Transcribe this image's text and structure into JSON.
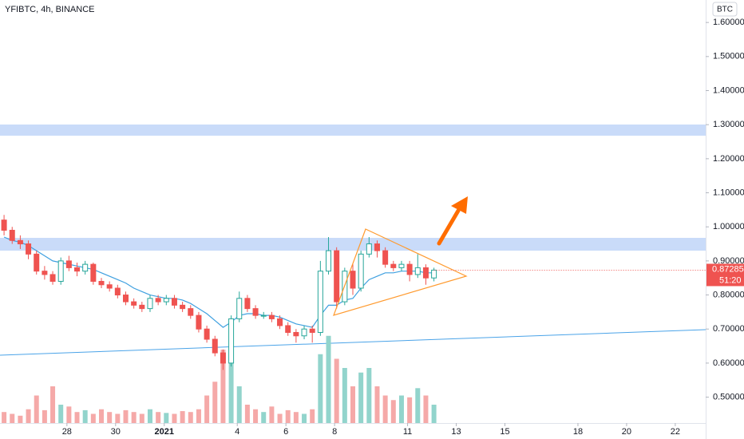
{
  "chart_data": {
    "type": "candlestick",
    "title": "YFIBTC, 4h, BINANCE",
    "currency": "BTC",
    "last_price": 0.87285,
    "countdown": "51:20",
    "up_color": "#26a69a",
    "down_color": "#ef5350",
    "up_volume_color": "#92d4cc",
    "down_volume_color": "#f5a9a8",
    "ema_color": "#3fa0e0",
    "xlim": [
      0,
      174
    ],
    "ylim": [
      0.424,
      1.666
    ],
    "vlim": [
      0,
      100
    ],
    "xticks": [
      {
        "value": 16.5,
        "label": "28"
      },
      {
        "value": 28.5,
        "label": "30"
      },
      {
        "value": 40.5,
        "label": "2021"
      },
      {
        "value": 58.5,
        "label": "4"
      },
      {
        "value": 70.5,
        "label": "6"
      },
      {
        "value": 82.5,
        "label": "8"
      },
      {
        "value": 100.5,
        "label": "11"
      },
      {
        "value": 112.5,
        "label": "13"
      },
      {
        "value": 124.5,
        "label": "15"
      },
      {
        "value": 142.5,
        "label": "18"
      },
      {
        "value": 154.5,
        "label": "20"
      },
      {
        "value": 166.5,
        "label": "22"
      }
    ],
    "yticks": [
      {
        "value": 0.5,
        "label": "0.50000"
      },
      {
        "value": 0.6,
        "label": "0.60000"
      },
      {
        "value": 0.7,
        "label": "0.70000"
      },
      {
        "value": 0.8,
        "label": "0.80000"
      },
      {
        "value": 0.9,
        "label": "0.90000"
      },
      {
        "value": 1.0,
        "label": "1.00000"
      },
      {
        "value": 1.1,
        "label": "1.10000"
      },
      {
        "value": 1.2,
        "label": "1.20000"
      },
      {
        "value": 1.3,
        "label": "1.30000"
      },
      {
        "value": 1.4,
        "label": "1.40000"
      },
      {
        "value": 1.5,
        "label": "1.50000"
      },
      {
        "value": 1.6,
        "label": "1.60000"
      }
    ],
    "x": [
      1,
      3,
      5,
      7,
      9,
      11,
      13,
      15,
      17,
      19,
      21,
      23,
      25,
      27,
      29,
      31,
      33,
      35,
      37,
      39,
      41,
      43,
      45,
      47,
      49,
      51,
      53,
      55,
      57,
      59,
      61,
      63,
      65,
      67,
      69,
      71,
      73,
      75,
      77,
      79,
      81,
      83,
      85,
      87,
      89,
      91,
      93,
      95,
      97,
      99,
      101,
      103,
      105,
      107
    ],
    "open": [
      1.02,
      0.99,
      0.96,
      0.95,
      0.92,
      0.87,
      0.86,
      0.84,
      0.9,
      0.88,
      0.87,
      0.89,
      0.84,
      0.83,
      0.82,
      0.8,
      0.78,
      0.77,
      0.76,
      0.79,
      0.78,
      0.79,
      0.77,
      0.76,
      0.74,
      0.7,
      0.67,
      0.63,
      0.6,
      0.73,
      0.79,
      0.76,
      0.74,
      0.74,
      0.73,
      0.71,
      0.69,
      0.68,
      0.7,
      0.69,
      0.87,
      0.93,
      0.78,
      0.87,
      0.82,
      0.92,
      0.95,
      0.93,
      0.89,
      0.88,
      0.89,
      0.86,
      0.88,
      0.85
    ],
    "high": [
      1.035,
      1.0,
      0.975,
      0.96,
      0.93,
      0.885,
      0.87,
      0.91,
      0.915,
      0.895,
      0.9,
      0.895,
      0.85,
      0.84,
      0.83,
      0.81,
      0.79,
      0.78,
      0.8,
      0.8,
      0.8,
      0.8,
      0.78,
      0.77,
      0.75,
      0.71,
      0.68,
      0.64,
      0.74,
      0.81,
      0.8,
      0.77,
      0.75,
      0.75,
      0.74,
      0.72,
      0.7,
      0.71,
      0.71,
      0.9,
      0.97,
      0.94,
      0.88,
      0.89,
      0.93,
      0.97,
      0.96,
      0.94,
      0.9,
      0.9,
      0.9,
      0.92,
      0.89,
      0.88
    ],
    "low": [
      0.975,
      0.95,
      0.935,
      0.905,
      0.86,
      0.845,
      0.83,
      0.83,
      0.87,
      0.855,
      0.86,
      0.83,
      0.82,
      0.81,
      0.79,
      0.77,
      0.76,
      0.75,
      0.75,
      0.77,
      0.77,
      0.76,
      0.75,
      0.73,
      0.69,
      0.66,
      0.62,
      0.58,
      0.59,
      0.72,
      0.75,
      0.73,
      0.73,
      0.72,
      0.7,
      0.68,
      0.66,
      0.67,
      0.66,
      0.68,
      0.86,
      0.76,
      0.77,
      0.8,
      0.81,
      0.91,
      0.91,
      0.88,
      0.87,
      0.87,
      0.84,
      0.85,
      0.83,
      0.84
    ],
    "close": [
      0.99,
      0.96,
      0.95,
      0.92,
      0.87,
      0.86,
      0.84,
      0.9,
      0.88,
      0.87,
      0.89,
      0.84,
      0.83,
      0.82,
      0.8,
      0.78,
      0.77,
      0.76,
      0.79,
      0.78,
      0.79,
      0.77,
      0.76,
      0.74,
      0.7,
      0.67,
      0.63,
      0.6,
      0.73,
      0.79,
      0.76,
      0.74,
      0.74,
      0.73,
      0.71,
      0.69,
      0.68,
      0.7,
      0.69,
      0.87,
      0.93,
      0.78,
      0.87,
      0.82,
      0.92,
      0.95,
      0.93,
      0.89,
      0.88,
      0.89,
      0.86,
      0.88,
      0.85,
      0.873
    ],
    "volume": [
      12,
      10,
      8,
      15,
      30,
      14,
      40,
      20,
      18,
      12,
      14,
      10,
      15,
      12,
      10,
      14,
      12,
      10,
      15,
      12,
      11,
      10,
      13,
      12,
      15,
      30,
      45,
      80,
      70,
      40,
      20,
      15,
      12,
      18,
      10,
      14,
      12,
      10,
      15,
      75,
      95,
      70,
      60,
      40,
      55,
      60,
      40,
      30,
      25,
      30,
      28,
      38,
      30,
      20
    ],
    "ema": [
      0.97,
      0.96,
      0.955,
      0.945,
      0.93,
      0.915,
      0.9,
      0.895,
      0.89,
      0.885,
      0.88,
      0.875,
      0.865,
      0.855,
      0.845,
      0.835,
      0.82,
      0.81,
      0.8,
      0.795,
      0.79,
      0.79,
      0.785,
      0.775,
      0.76,
      0.745,
      0.725,
      0.705,
      0.72,
      0.74,
      0.745,
      0.745,
      0.74,
      0.74,
      0.735,
      0.725,
      0.715,
      0.71,
      0.705,
      0.74,
      0.77,
      0.77,
      0.785,
      0.79,
      0.82,
      0.845,
      0.855,
      0.865,
      0.865,
      0.87,
      0.87,
      0.87,
      0.865,
      0.865
    ]
  }
}
